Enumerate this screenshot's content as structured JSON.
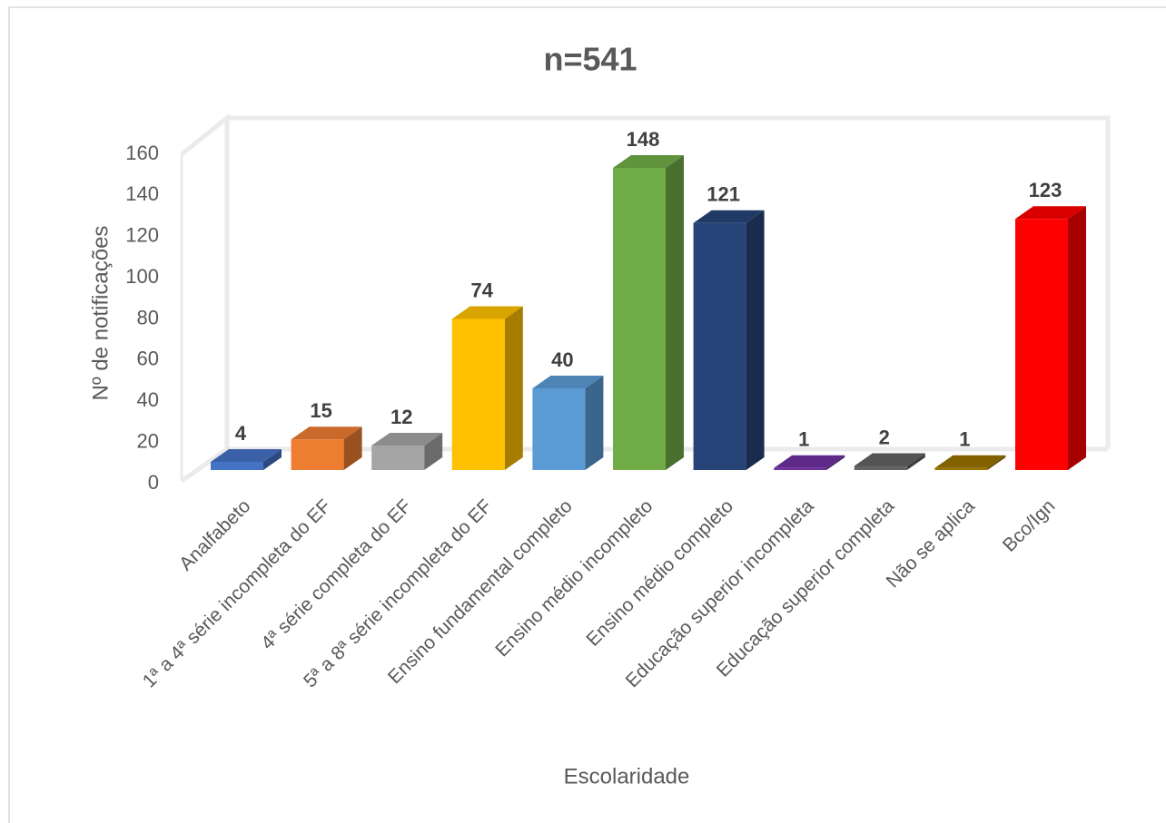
{
  "chart_data": {
    "type": "bar3d",
    "title": "n=541",
    "x_label": "Escolaridade",
    "y_label": "Nº de notificações",
    "categories": [
      "Analfabeto",
      "1ª a 4ª série incompleta do EF",
      "4ª série completa do EF",
      "5ª a 8ª série incompleta do EF",
      "Ensino fundamental completo",
      "Ensino médio incompleto",
      "Ensino médio completo",
      "Educação superior incompleta",
      "Educação superior completa",
      "Não se aplica",
      "Bco/Ign"
    ],
    "values": [
      4,
      15,
      12,
      74,
      40,
      148,
      121,
      1,
      2,
      1,
      123
    ],
    "colors": [
      "#4472c4",
      "#ed7d31",
      "#a5a5a5",
      "#ffc000",
      "#5b9bd5",
      "#70ad47",
      "#264478",
      "#7030a0",
      "#636363",
      "#997300",
      "#ff0000"
    ],
    "ylim": [
      0,
      160
    ],
    "yticks": [
      0,
      20,
      40,
      60,
      80,
      100,
      120,
      140,
      160
    ],
    "grid": false
  }
}
